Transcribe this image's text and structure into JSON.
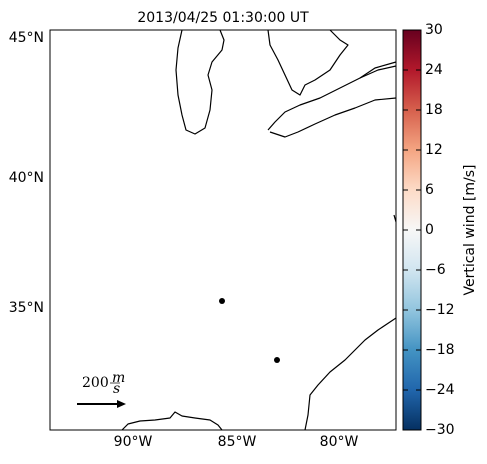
{
  "title": "2013/04/25 01:30:00 UT",
  "lat_labels": [
    "45°N",
    "40°N",
    "35°N"
  ],
  "lon_labels": [
    "90°W",
    "85°W",
    "80°W"
  ],
  "arrow_key": {
    "value": "200",
    "unit_num": "m",
    "unit_den": "s"
  },
  "colorbar": {
    "label": "Vertical wind [m/s]",
    "lim": [
      -30,
      30
    ],
    "colors": [
      "#053061",
      "#2166ac",
      "#4393c3",
      "#92c5de",
      "#d1e5f0",
      "#f7f7f7",
      "#fddbc7",
      "#f4a582",
      "#d6604d",
      "#b2182b",
      "#67001f"
    ],
    "ticks": [
      {
        "value": -30,
        "label": "−30"
      },
      {
        "value": -24,
        "label": "−24"
      },
      {
        "value": -18,
        "label": "−18"
      },
      {
        "value": -12,
        "label": "−12"
      },
      {
        "value": -6,
        "label": "−6"
      },
      0,
      6,
      12,
      18,
      24,
      30
    ]
  }
}
